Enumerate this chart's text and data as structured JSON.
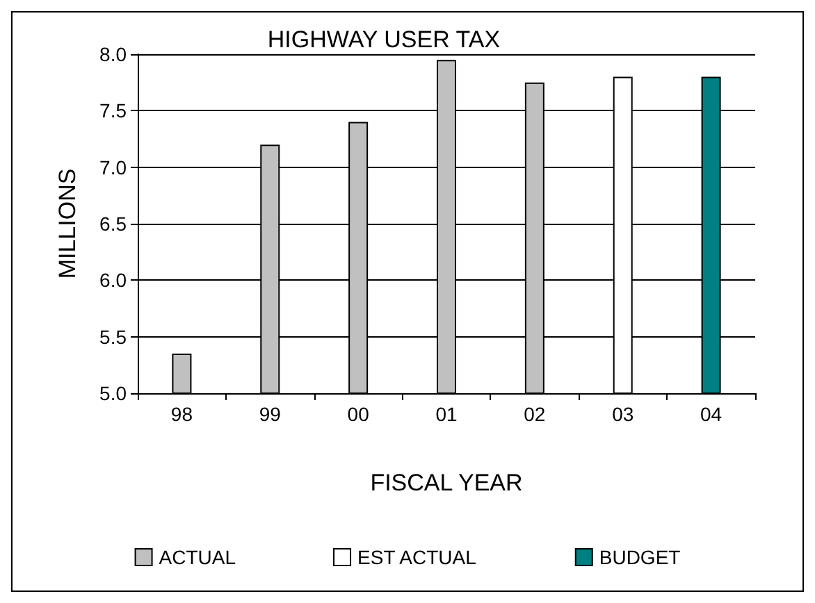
{
  "chart_data": {
    "type": "bar",
    "title": "HIGHWAY USER TAX",
    "xlabel": "FISCAL YEAR",
    "ylabel": "MILLIONS",
    "categories": [
      "98",
      "99",
      "00",
      "01",
      "02",
      "03",
      "04"
    ],
    "series": [
      {
        "name": "ACTUAL",
        "color": "#c0c0c0",
        "values": [
          5.35,
          7.2,
          7.4,
          7.95,
          7.75,
          null,
          null
        ]
      },
      {
        "name": "EST ACTUAL",
        "color": "#ffffff",
        "values": [
          null,
          null,
          null,
          null,
          null,
          7.8,
          null
        ]
      },
      {
        "name": "BUDGET",
        "color": "#008080",
        "values": [
          null,
          null,
          null,
          null,
          null,
          null,
          7.8
        ]
      }
    ],
    "ylim": [
      5,
      8
    ],
    "yticks": [
      {
        "value": 5,
        "label": "5.0"
      },
      {
        "value": 5.5,
        "label": "5.5"
      },
      {
        "value": 6,
        "label": "6.0"
      },
      {
        "value": 6.5,
        "label": "6.5"
      },
      {
        "value": 7,
        "label": "7.0"
      },
      {
        "value": 7.5,
        "label": "7.5"
      },
      {
        "value": 8,
        "label": "8.0"
      }
    ],
    "grid": "y",
    "legend": "bottom"
  }
}
